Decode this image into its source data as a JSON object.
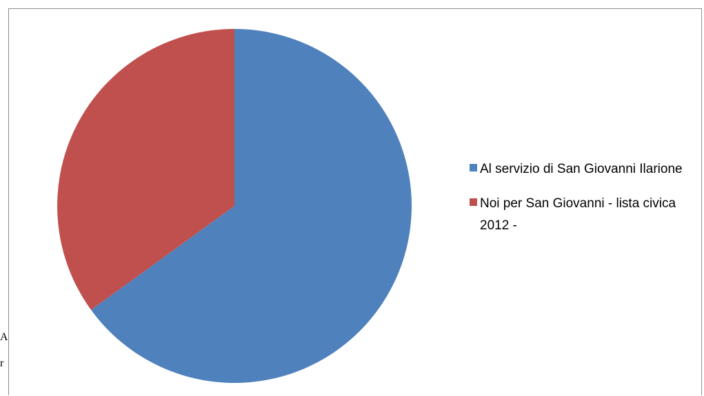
{
  "background_text": {
    "line1": "A",
    "line2": "r"
  },
  "chart_data": {
    "type": "pie",
    "title": "",
    "categories": [
      "Al servizio di San Giovanni Ilarione",
      "Noi per San Giovanni - lista civica 2012 -"
    ],
    "values": [
      65,
      35
    ],
    "colors": [
      "#4f81bd",
      "#c0504d"
    ],
    "start_angle_deg": 0,
    "direction": "clockwise",
    "legend_position": "right"
  }
}
